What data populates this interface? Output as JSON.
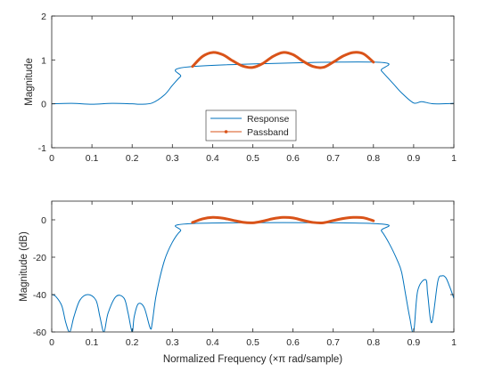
{
  "chart_data": [
    {
      "type": "line",
      "xlabel": "",
      "ylabel": "Magnitude",
      "xlim": [
        0,
        1
      ],
      "ylim": [
        -1,
        2
      ],
      "xticks": [
        "0",
        "0.1",
        "0.2",
        "0.3",
        "0.4",
        "0.5",
        "0.6",
        "0.7",
        "0.8",
        "0.9",
        "1"
      ],
      "yticks": [
        "-1",
        "0",
        "1",
        "2"
      ],
      "grid": false,
      "legend": {
        "location": "bottom-center",
        "entries": [
          "Response",
          "Passband"
        ]
      },
      "series": [
        {
          "name": "Response",
          "color": "#0072bd",
          "x": [
            0,
            0.05,
            0.1,
            0.15,
            0.2,
            0.22,
            0.25,
            0.28,
            0.3,
            0.32,
            0.35,
            0.8,
            0.82,
            0.85,
            0.87,
            0.9,
            0.92,
            0.95,
            1.0
          ],
          "y": [
            0.0,
            0.01,
            -0.01,
            0.01,
            0.0,
            -0.01,
            0.02,
            0.2,
            0.42,
            0.62,
            0.85,
            0.95,
            0.75,
            0.45,
            0.25,
            0.02,
            0.05,
            0.0,
            0.01
          ]
        },
        {
          "name": "Passband",
          "color": "#d95319",
          "x": [
            0.35,
            0.375,
            0.4,
            0.425,
            0.45,
            0.475,
            0.5,
            0.525,
            0.55,
            0.575,
            0.6,
            0.625,
            0.65,
            0.675,
            0.7,
            0.725,
            0.75,
            0.775,
            0.8
          ],
          "y": [
            0.85,
            1.08,
            1.17,
            1.12,
            0.98,
            0.86,
            0.83,
            0.92,
            1.08,
            1.17,
            1.12,
            0.97,
            0.85,
            0.83,
            0.95,
            1.09,
            1.17,
            1.14,
            0.95
          ]
        }
      ]
    },
    {
      "type": "line",
      "xlabel": "Normalized Frequency (×π rad/sample)",
      "ylabel": "Magnitude (dB)",
      "xlim": [
        0,
        1
      ],
      "ylim": [
        -60,
        10
      ],
      "xticks": [
        "0",
        "0.1",
        "0.2",
        "0.3",
        "0.4",
        "0.5",
        "0.6",
        "0.7",
        "0.8",
        "0.9",
        "1"
      ],
      "yticks": [
        "-60",
        "-40",
        "-20",
        "0"
      ],
      "grid": false,
      "series": [
        {
          "name": "Response",
          "color": "#0072bd",
          "x": [
            0,
            0.01,
            0.025,
            0.035,
            0.045,
            0.055,
            0.07,
            0.09,
            0.11,
            0.12,
            0.13,
            0.14,
            0.16,
            0.18,
            0.19,
            0.2,
            0.205,
            0.215,
            0.23,
            0.245,
            0.25,
            0.26,
            0.28,
            0.3,
            0.32,
            0.35,
            0.8,
            0.82,
            0.84,
            0.86,
            0.87,
            0.88,
            0.89,
            0.9,
            0.91,
            0.93,
            0.935,
            0.945,
            0.96,
            0.97,
            0.98,
            0.99,
            1.0
          ],
          "y": [
            -40,
            -41,
            -46,
            -55,
            -60,
            -52,
            -43,
            -40,
            -43,
            -52,
            -60,
            -50,
            -41,
            -42,
            -50,
            -60,
            -52,
            -45,
            -47,
            -58,
            -55,
            -40,
            -22,
            -12,
            -6,
            -2,
            -2,
            -6,
            -13,
            -22,
            -28,
            -40,
            -52,
            -60,
            -38,
            -32,
            -40,
            -55,
            -33,
            -30,
            -31,
            -36,
            -42
          ]
        },
        {
          "name": "Passband",
          "color": "#d95319",
          "x": [
            0.35,
            0.375,
            0.4,
            0.425,
            0.45,
            0.475,
            0.5,
            0.525,
            0.55,
            0.575,
            0.6,
            0.625,
            0.65,
            0.675,
            0.7,
            0.725,
            0.75,
            0.775,
            0.8
          ],
          "y": [
            -1.4,
            0.5,
            1.3,
            0.9,
            -0.2,
            -1.3,
            -1.6,
            -0.7,
            0.6,
            1.3,
            1.0,
            -0.3,
            -1.4,
            -1.6,
            -0.4,
            0.7,
            1.3,
            1.1,
            -0.5
          ]
        }
      ]
    }
  ]
}
